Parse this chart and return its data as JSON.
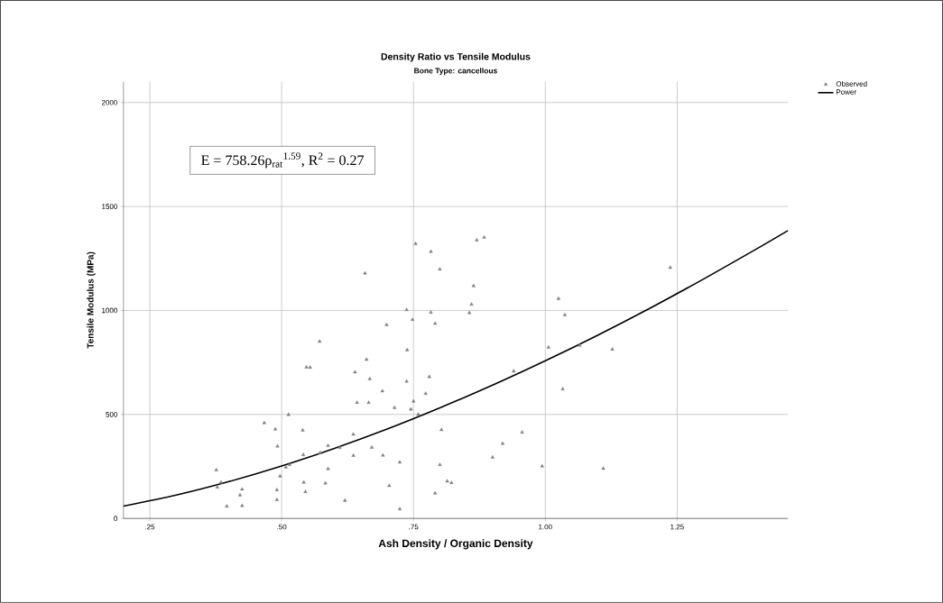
{
  "chart_data": {
    "type": "scatter",
    "title": "Density Ratio vs Tensile Modulus",
    "subtitle": "Bone Type: cancellous",
    "xlabel": "Ash Density / Organic Density",
    "ylabel": "Tensile Modulus (MPa)",
    "annotations": [
      "E = 758.26ρ$_{rat}$$^{1.59}$, R$^{2}$ = 0.27"
    ],
    "xlim": [
      0.2,
      1.46
    ],
    "ylim": [
      0,
      2100
    ],
    "xticks": [
      {
        "value": 0.25,
        "label": ".25"
      },
      {
        "value": 0.5,
        "label": ".50"
      },
      {
        "value": 0.75,
        "label": ".75"
      },
      {
        "value": 1.0,
        "label": "1.00"
      },
      {
        "value": 1.25,
        "label": "1.25"
      }
    ],
    "yticks": [
      0,
      500,
      1000,
      1500,
      2000
    ],
    "grid": true,
    "legend": "top right",
    "series": [
      {
        "name": "Observed",
        "color": "#808080",
        "marker": "triangle",
        "x": [
          0.376,
          0.378,
          0.385,
          0.396,
          0.421,
          0.425,
          0.425,
          0.467,
          0.488,
          0.492,
          0.491,
          0.491,
          0.497,
          0.513,
          0.508,
          0.515,
          0.54,
          0.541,
          0.542,
          0.545,
          0.547,
          0.554,
          0.572,
          0.573,
          0.583,
          0.588,
          0.588,
          0.61,
          0.62,
          0.636,
          0.636,
          0.639,
          0.643,
          0.658,
          0.661,
          0.665,
          0.667,
          0.671,
          0.691,
          0.692,
          0.699,
          0.704,
          0.714,
          0.724,
          0.724,
          0.737,
          0.738,
          0.737,
          0.745,
          0.748,
          0.75,
          0.759,
          0.773,
          0.78,
          0.783,
          0.783,
          0.791,
          0.791,
          0.8,
          0.8,
          0.803,
          0.814,
          0.822,
          0.856,
          0.86,
          0.864,
          0.754,
          0.87,
          0.884,
          1.237,
          1.025,
          1.037,
          1.006,
          1.065,
          1.127,
          0.94,
          1.033,
          0.956,
          0.919,
          0.9,
          0.994,
          1.11
        ],
        "values": [
          233,
          150,
          173,
          58,
          112,
          140,
          61,
          459,
          429,
          347,
          137,
          90,
          203,
          499,
          246,
          258,
          424,
          306,
          173,
          128,
          727,
          726,
          851,
          315,
          169,
          350,
          238,
          340,
          86,
          404,
          302,
          703,
          557,
          1179,
          764,
          557,
          671,
          341,
          612,
          303,
          931,
          157,
          532,
          270,
          45,
          1003,
          810,
          659,
          525,
          956,
          563,
          500,
          600,
          681,
          1283,
          990,
          937,
          121,
          1198,
          258,
          426,
          179,
          171,
          988,
          1029,
          1118,
          1321,
          1338,
          1351,
          1206,
          1057,
          978,
          822,
          832,
          813,
          708,
          622,
          414,
          360,
          294,
          251,
          240
        ]
      },
      {
        "name": "Power",
        "type": "line",
        "color": "#000000",
        "line_style": "solid",
        "marker": "none",
        "x": [
          0.2,
          0.3,
          0.4,
          0.5,
          0.6,
          0.7,
          0.8,
          0.9,
          1.0,
          1.1,
          1.2,
          1.3,
          1.4,
          1.46
        ],
        "values": [
          59,
          112,
          177,
          252,
          337,
          430,
          532,
          641,
          758,
          882,
          1013,
          1151,
          1295,
          1384
        ]
      }
    ]
  }
}
